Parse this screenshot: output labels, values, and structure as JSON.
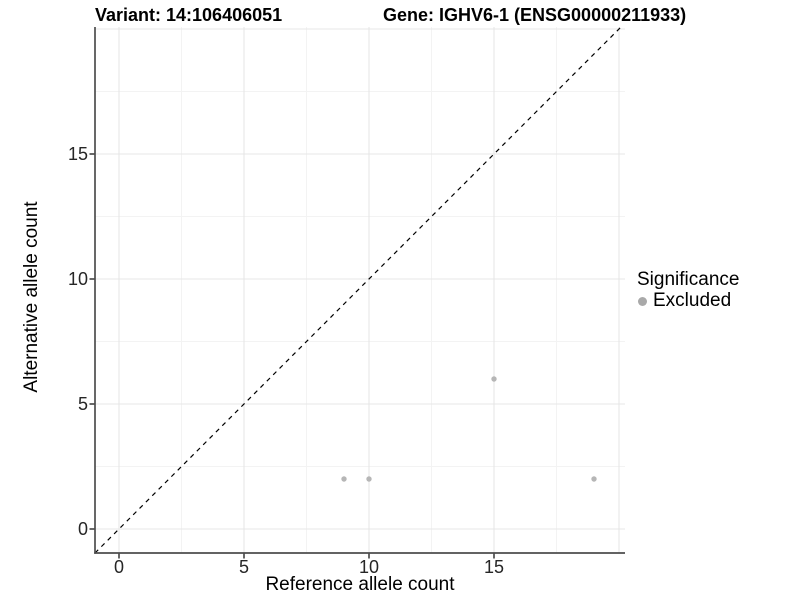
{
  "chart_data": {
    "type": "scatter",
    "title_left": "Variant: 14:106406051",
    "title_right": "Gene: IGHV6-1 (ENSG00000211933)",
    "xlabel": "Reference allele count",
    "ylabel": "Alternative allele count",
    "xlim": [
      -0.96,
      20.24
    ],
    "ylim": [
      -0.96,
      20.08
    ],
    "x_ticks": [
      0,
      5,
      10,
      15
    ],
    "y_ticks": [
      0,
      5,
      10,
      15
    ],
    "major_grid": [
      0,
      5,
      10,
      15,
      20
    ],
    "minor_grid": [
      2.5,
      7.5,
      12.5,
      17.5
    ],
    "grid": "major+minor",
    "legend_position": "right",
    "series": [
      {
        "name": "Excluded",
        "marker": "circle",
        "color": "#b6b6b6",
        "points": [
          [
            9,
            2
          ],
          [
            10,
            2
          ],
          [
            15,
            6
          ],
          [
            19,
            2
          ]
        ]
      }
    ],
    "reference_line": {
      "type": "identity",
      "equation": "y = x",
      "style": "dashed",
      "color": "#000000"
    }
  },
  "legend": {
    "title": "Significance",
    "entries": [
      {
        "label": "Excluded",
        "marker": "circle",
        "color": "#a9a9a9"
      }
    ]
  },
  "colors": {
    "background": "#ffffff",
    "axis_line": "#4d4d4d",
    "tick_mark": "#4d4d4d",
    "tick_label": "#262626",
    "grid_major": "#e7e7e7",
    "grid_minor": "#f3f3f3",
    "point": "#b6b6b6",
    "dashed_line": "#000000"
  }
}
